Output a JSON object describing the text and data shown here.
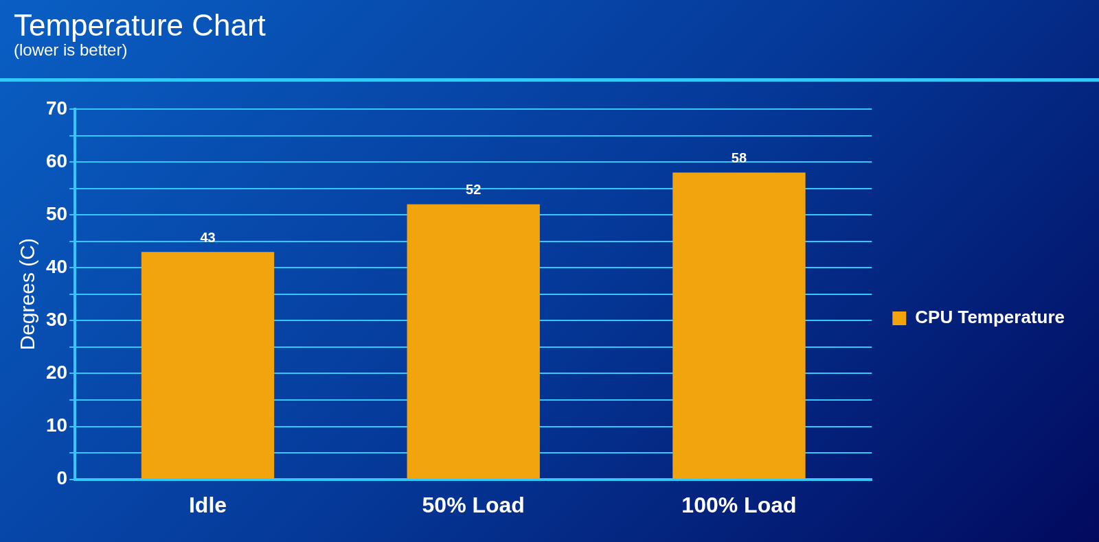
{
  "chart_data": {
    "type": "bar",
    "title": "Temperature Chart",
    "subtitle": "(lower is better)",
    "ylabel": "Degrees (C)",
    "categories": [
      "Idle",
      "50% Load",
      "100% Load"
    ],
    "series": [
      {
        "name": "CPU Temperature",
        "color": "#f2a40f",
        "values": [
          43,
          52,
          58
        ]
      }
    ],
    "ylim": [
      0,
      70
    ],
    "yticks": [
      0,
      {
        "value": 5,
        "label": null
      },
      10,
      {
        "value": 15,
        "label": null
      },
      20,
      {
        "value": 25,
        "label": null
      },
      30,
      {
        "value": 35,
        "label": null
      },
      40,
      {
        "value": 45,
        "label": null
      },
      50,
      {
        "value": 55,
        "label": null
      },
      60,
      {
        "value": 65,
        "label": null
      },
      70
    ],
    "grid": "y",
    "legend": "right",
    "data_labels": true
  }
}
